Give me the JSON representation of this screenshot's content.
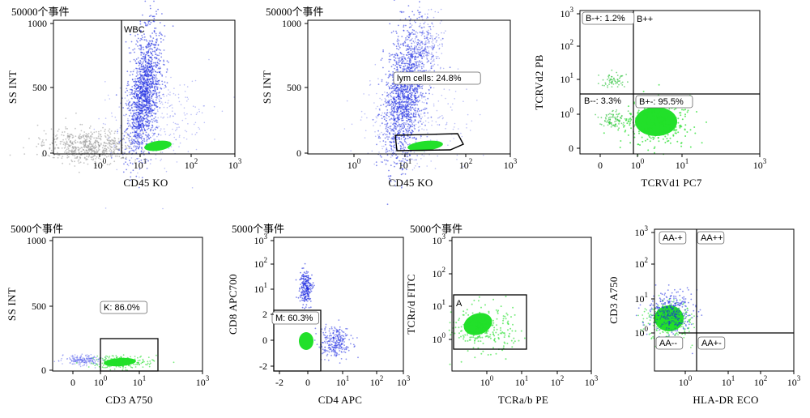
{
  "chart_data": [
    {
      "type": "scatter",
      "title": "50000个事件",
      "xlabel": "CD45 KO",
      "ylabel": "SS INT",
      "x_ticks": [
        {
          "base": "10",
          "exp": "0"
        },
        {
          "base": "10",
          "exp": "1"
        },
        {
          "base": "10",
          "exp": "2"
        },
        {
          "base": "10",
          "exp": "3"
        }
      ],
      "y_ticks": [
        "1000",
        "500",
        "0"
      ],
      "gates": [
        {
          "label": "WBC"
        }
      ],
      "populations": [
        {
          "color": "#9a9a9a",
          "x": "CD45 dim",
          "y": "low SS"
        },
        {
          "color": "#1f2de0",
          "x": "CD45 10^1",
          "y": "150-950"
        },
        {
          "color": "#22e02a",
          "x": "CD45 10^1.3",
          "y": "~60"
        }
      ]
    },
    {
      "type": "scatter",
      "title": "50000个事件",
      "xlabel": "CD45 KO",
      "ylabel": "SS INT",
      "x_ticks": [
        {
          "base": "10",
          "exp": "0"
        },
        {
          "base": "10",
          "exp": "1"
        },
        {
          "base": "10",
          "exp": "2"
        },
        {
          "base": "10",
          "exp": "3"
        }
      ],
      "y_ticks": [
        "1000",
        "500",
        "0"
      ],
      "gates": [
        {
          "label": "lym cells: 24.8%"
        }
      ]
    },
    {
      "type": "scatter",
      "title": "",
      "xlabel": "TCRVd1 PC7",
      "ylabel": "TCRVd2 PB",
      "x_ticks": [
        {
          "base": "0",
          "exp": ""
        },
        {
          "base": "10",
          "exp": "0"
        },
        {
          "base": "10",
          "exp": "1"
        },
        {
          "base": "10",
          "exp": "3"
        }
      ],
      "y_ticks": [
        {
          "base": "10",
          "exp": "3"
        },
        {
          "base": "10",
          "exp": "2"
        },
        {
          "base": "10",
          "exp": "1"
        },
        {
          "base": "10",
          "exp": "0"
        },
        {
          "base": "0",
          "exp": ""
        }
      ],
      "quadrants": [
        {
          "label": "B-+: 1.2%"
        },
        {
          "label": "B++"
        },
        {
          "label": "B--: 3.3%"
        },
        {
          "label": "B+-: 95.5%"
        }
      ]
    },
    {
      "type": "scatter",
      "title": "5000个事件",
      "xlabel": "CD3 A750",
      "ylabel": "SS INT",
      "x_ticks": [
        {
          "base": "0",
          "exp": ""
        },
        {
          "base": "10",
          "exp": "0"
        },
        {
          "base": "10",
          "exp": "1"
        },
        {
          "base": "10",
          "exp": "3"
        }
      ],
      "y_ticks": [
        "1000",
        "500",
        "0"
      ],
      "gates": [
        {
          "label": "K: 86.0%"
        }
      ]
    },
    {
      "type": "scatter",
      "title": "5000个事件",
      "xlabel": "CD4 APC",
      "ylabel": "CD8 APC700",
      "x_ticks": [
        {
          "base": "-2",
          "exp": ""
        },
        {
          "base": "0",
          "exp": ""
        },
        {
          "base": "10",
          "exp": "1"
        },
        {
          "base": "10",
          "exp": "2"
        },
        {
          "base": "10",
          "exp": "3"
        }
      ],
      "y_ticks": [
        {
          "base": "10",
          "exp": "3"
        },
        {
          "base": "10",
          "exp": "2"
        },
        {
          "base": "10",
          "exp": "1"
        },
        {
          "base": "2",
          "exp": ""
        },
        {
          "base": "0",
          "exp": ""
        },
        {
          "base": "-2",
          "exp": ""
        }
      ],
      "gates": [
        {
          "label": "M: 60.3%"
        }
      ]
    },
    {
      "type": "scatter",
      "title": "5000个事件",
      "xlabel": "TCRa/b PE",
      "ylabel": "TCRr/d FITC",
      "x_ticks": [
        {
          "base": "10",
          "exp": "0"
        },
        {
          "base": "10",
          "exp": "1"
        },
        {
          "base": "10",
          "exp": "2"
        },
        {
          "base": "10",
          "exp": "3"
        }
      ],
      "y_ticks": [
        {
          "base": "10",
          "exp": "3"
        },
        {
          "base": "10",
          "exp": "2"
        },
        {
          "base": "10",
          "exp": "1"
        },
        {
          "base": "10",
          "exp": "0"
        }
      ],
      "gates": [
        {
          "label": "A"
        }
      ]
    },
    {
      "type": "scatter",
      "title": "",
      "xlabel": "HLA-DR ECO",
      "ylabel": "CD3 A750",
      "x_ticks": [
        {
          "base": "10",
          "exp": "0"
        },
        {
          "base": "10",
          "exp": "1"
        },
        {
          "base": "10",
          "exp": "2"
        },
        {
          "base": "10",
          "exp": "3"
        }
      ],
      "y_ticks": [
        {
          "base": "10",
          "exp": "3"
        },
        {
          "base": "10",
          "exp": "2"
        },
        {
          "base": "10",
          "exp": "1"
        },
        {
          "base": "10",
          "exp": "0"
        }
      ],
      "quadrants": [
        {
          "label": "AA-+"
        },
        {
          "label": "AA++"
        },
        {
          "label": "AA--"
        },
        {
          "label": "AA+-"
        }
      ]
    }
  ]
}
